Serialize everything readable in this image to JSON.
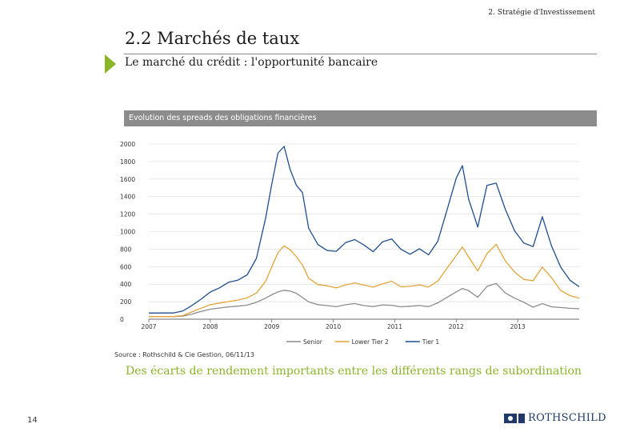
{
  "header": {
    "section_label": "2. Stratégie d'Investissement",
    "title": "2.2 Marchés de taux",
    "subtitle": "Le marché du crédit : l'opportunité bancaire"
  },
  "chart_box": {
    "header_text": "Evolution des spreads des obligations financières"
  },
  "chart_data": {
    "type": "line",
    "title": "Evolution des spreads des obligations financières",
    "xlabel": "",
    "ylabel": "",
    "ylim": [
      0,
      2000
    ],
    "xlim": [
      2007.0,
      2014.0
    ],
    "yticks": [
      "0",
      "200",
      "400",
      "600",
      "800",
      "1000",
      "1200",
      "1400",
      "1600",
      "1800",
      "2000"
    ],
    "xticks": [
      "2007",
      "2008",
      "2009",
      "2010",
      "2011",
      "2012",
      "2013"
    ],
    "legend_position": "bottom",
    "series": [
      {
        "name": "Senior",
        "color": "#8c8c8c",
        "x": [
          2007.0,
          2007.4,
          2007.55,
          2007.7,
          2007.85,
          2008.0,
          2008.15,
          2008.3,
          2008.45,
          2008.6,
          2008.75,
          2008.9,
          2009.0,
          2009.1,
          2009.2,
          2009.3,
          2009.4,
          2009.5,
          2009.6,
          2009.75,
          2009.9,
          2010.05,
          2010.2,
          2010.35,
          2010.5,
          2010.65,
          2010.8,
          2010.95,
          2011.1,
          2011.25,
          2011.4,
          2011.55,
          2011.7,
          2011.85,
          2012.0,
          2012.1,
          2012.2,
          2012.35,
          2012.5,
          2012.65,
          2012.8,
          2012.95,
          2013.1,
          2013.25,
          2013.4,
          2013.55,
          2013.7,
          2013.85,
          2014.0
        ],
        "values": [
          30,
          30,
          35,
          55,
          85,
          110,
          125,
          140,
          150,
          165,
          200,
          250,
          290,
          320,
          335,
          320,
          290,
          240,
          190,
          160,
          150,
          140,
          165,
          180,
          160,
          150,
          170,
          165,
          145,
          150,
          155,
          140,
          180,
          240,
          300,
          340,
          320,
          250,
          380,
          420,
          310,
          250,
          200,
          140,
          180,
          140,
          130,
          120,
          120
        ]
      },
      {
        "name": "Lower Tier 2",
        "color": "#e3a43a",
        "x": [
          2007.0,
          2007.4,
          2007.55,
          2007.7,
          2007.85,
          2008.0,
          2008.15,
          2008.3,
          2008.45,
          2008.6,
          2008.75,
          2008.9,
          2009.0,
          2009.1,
          2009.2,
          2009.3,
          2009.4,
          2009.5,
          2009.6,
          2009.75,
          2009.9,
          2010.05,
          2010.2,
          2010.35,
          2010.5,
          2010.65,
          2010.8,
          2010.95,
          2011.1,
          2011.25,
          2011.4,
          2011.55,
          2011.7,
          2011.85,
          2012.0,
          2012.1,
          2012.2,
          2012.35,
          2012.5,
          2012.65,
          2012.8,
          2012.95,
          2013.1,
          2013.25,
          2013.4,
          2013.55,
          2013.7,
          2013.85,
          2014.0
        ],
        "values": [
          30,
          30,
          40,
          80,
          120,
          160,
          180,
          200,
          220,
          250,
          310,
          450,
          620,
          780,
          850,
          790,
          700,
          600,
          450,
          380,
          370,
          350,
          390,
          420,
          400,
          380,
          420,
          450,
          380,
          380,
          390,
          360,
          420,
          560,
          700,
          800,
          700,
          550,
          760,
          880,
          690,
          560,
          470,
          450,
          600,
          470,
          320,
          260,
          240
        ]
      },
      {
        "name": "Tier 1",
        "color": "#1f4e8c",
        "x": [
          2007.0,
          2007.4,
          2007.55,
          2007.7,
          2007.85,
          2008.0,
          2008.15,
          2008.3,
          2008.45,
          2008.6,
          2008.75,
          2008.9,
          2009.0,
          2009.1,
          2009.2,
          2009.3,
          2009.4,
          2009.5,
          2009.6,
          2009.75,
          2009.9,
          2010.05,
          2010.2,
          2010.35,
          2010.5,
          2010.65,
          2010.8,
          2010.95,
          2011.1,
          2011.25,
          2011.4,
          2011.55,
          2011.7,
          2011.85,
          2012.0,
          2012.1,
          2012.2,
          2012.35,
          2012.5,
          2012.65,
          2012.8,
          2012.95,
          2013.1,
          2013.25,
          2013.4,
          2013.55,
          2013.7,
          2013.85,
          2014.0
        ],
        "values": [
          70,
          70,
          90,
          150,
          220,
          300,
          350,
          420,
          450,
          520,
          720,
          1200,
          1600,
          1950,
          2000,
          1700,
          1500,
          1400,
          1000,
          820,
          760,
          760,
          870,
          920,
          870,
          800,
          920,
          950,
          820,
          750,
          800,
          720,
          860,
          1200,
          1550,
          1700,
          1350,
          1050,
          1550,
          1600,
          1300,
          1050,
          900,
          850,
          1180,
          830,
          580,
          430,
          370
        ]
      }
    ]
  },
  "source_text": "Source : Rothschild & Cie Gestion, 06/11/13",
  "caption": "Des écarts de rendement importants entre les différents rangs de subordination",
  "footer": {
    "page_number": "14",
    "brand": "ROTHSCHILD"
  }
}
